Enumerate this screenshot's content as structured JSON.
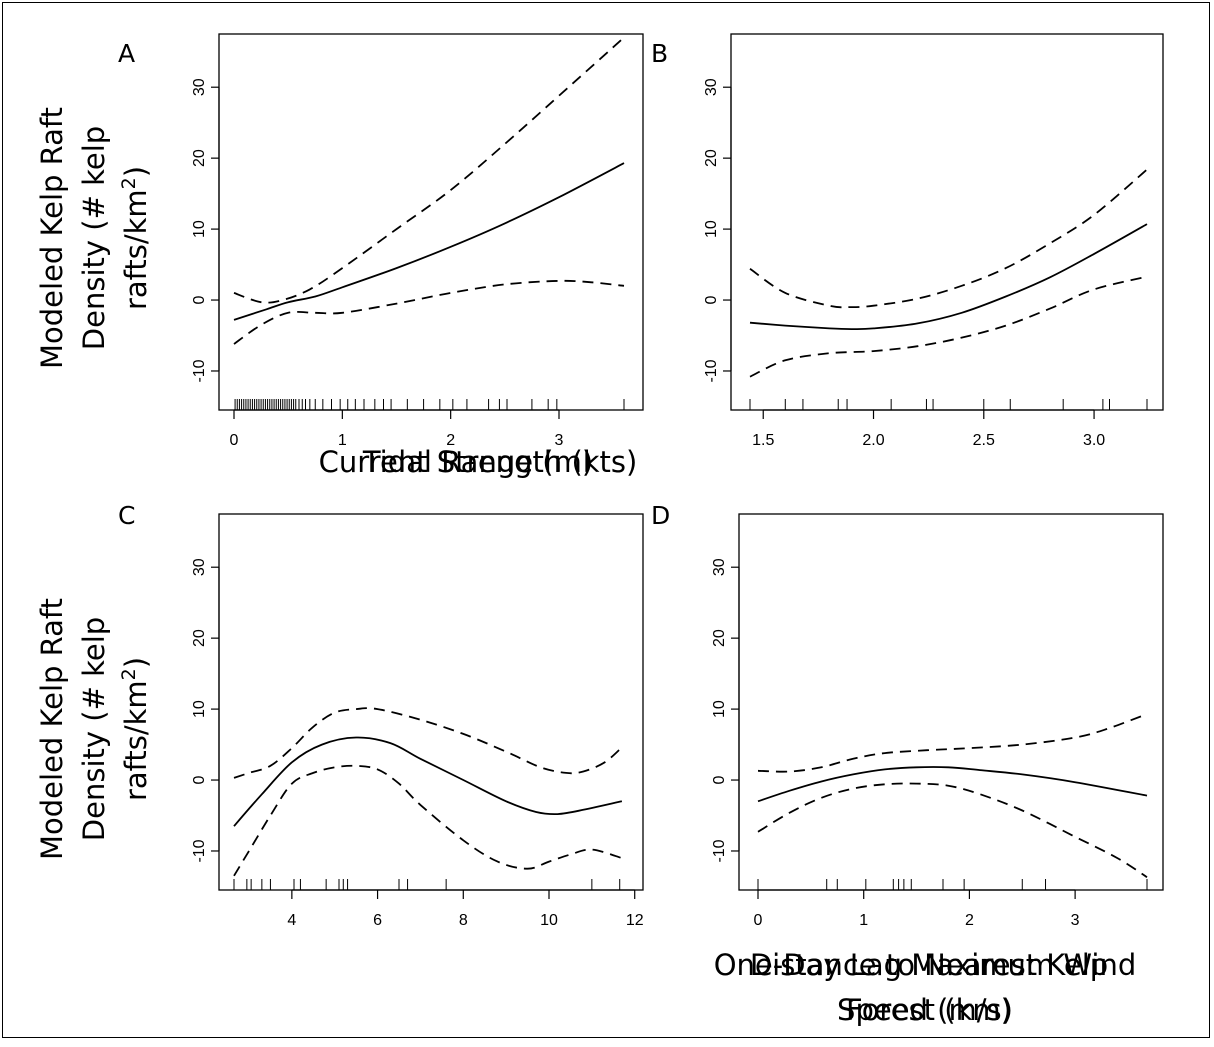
{
  "figure": {
    "y_label_line1": "Modeled Kelp Raft",
    "y_label_line2_prefix": "Density (# kelp",
    "y_label_line3_prefix": "rafts/km",
    "y_label_superscript": "2",
    "y_label_line3_suffix": ")"
  },
  "chart_data": [
    {
      "panel_letter": "A",
      "type": "line",
      "xlabel": [
        "Current Strength (kts)"
      ],
      "xlim": [
        0,
        3.6
      ],
      "ylim": [
        -15.5,
        37.5
      ],
      "xticks": [
        0,
        1,
        2,
        3
      ],
      "xtick_labels": [
        "0",
        "1",
        "2",
        "3"
      ],
      "yticks": [
        -10,
        0,
        10,
        20,
        30
      ],
      "ytick_labels": [
        "-10",
        "0",
        "10",
        "20",
        "30"
      ],
      "series": [
        {
          "role": "fit",
          "style": "solid",
          "x": [
            0,
            0.3,
            0.5,
            0.75,
            1,
            1.5,
            2,
            2.5,
            3,
            3.6
          ],
          "y": [
            -2.8,
            -1.3,
            -0.3,
            0.5,
            1.8,
            4.5,
            7.5,
            10.8,
            14.5,
            19.3
          ]
        },
        {
          "role": "upper",
          "style": "dashed",
          "x": [
            0,
            0.25,
            0.45,
            0.7,
            1,
            1.5,
            2,
            2.5,
            3,
            3.6
          ],
          "y": [
            1,
            -0.3,
            0,
            1.5,
            4.5,
            10,
            15.5,
            22,
            28.8,
            37
          ]
        },
        {
          "role": "lower",
          "style": "dashed",
          "x": [
            0,
            0.25,
            0.5,
            0.75,
            1,
            1.5,
            2,
            2.5,
            3,
            3.3,
            3.6
          ],
          "y": [
            -6.2,
            -3.5,
            -1.8,
            -1.8,
            -1.8,
            -0.5,
            1,
            2.2,
            2.7,
            2.5,
            2
          ]
        }
      ],
      "rug": [
        0.01,
        0.03,
        0.05,
        0.07,
        0.09,
        0.11,
        0.13,
        0.15,
        0.17,
        0.19,
        0.21,
        0.23,
        0.25,
        0.27,
        0.29,
        0.31,
        0.33,
        0.35,
        0.37,
        0.39,
        0.41,
        0.43,
        0.45,
        0.47,
        0.49,
        0.51,
        0.53,
        0.55,
        0.57,
        0.6,
        0.63,
        0.66,
        0.7,
        0.75,
        0.82,
        0.9,
        0.98,
        1.05,
        1.12,
        1.2,
        1.3,
        1.38,
        1.45,
        1.6,
        1.75,
        1.9,
        2.02,
        2.15,
        2.35,
        2.45,
        2.52,
        2.75,
        2.9,
        2.98,
        3.6
      ]
    },
    {
      "panel_letter": "B",
      "type": "line",
      "xlabel": [
        "Tidal Range (m)"
      ],
      "xlim": [
        1.44,
        3.24
      ],
      "ylim": [
        -15.5,
        37.5
      ],
      "xticks": [
        1.5,
        2.0,
        2.5,
        3.0
      ],
      "xtick_labels": [
        "1.5",
        "2.0",
        "2.5",
        "3.0"
      ],
      "yticks": [
        -10,
        0,
        10,
        20,
        30
      ],
      "ytick_labels": [
        "-10",
        "0",
        "10",
        "20",
        "30"
      ],
      "series": [
        {
          "role": "fit",
          "style": "solid",
          "x": [
            1.44,
            1.6,
            1.8,
            1.9,
            2.0,
            2.2,
            2.4,
            2.6,
            2.8,
            3.0,
            3.24
          ],
          "y": [
            -3.2,
            -3.6,
            -4,
            -4.1,
            -4,
            -3.3,
            -1.8,
            0.5,
            3.2,
            6.5,
            10.7
          ]
        },
        {
          "role": "upper",
          "style": "dashed",
          "x": [
            1.44,
            1.6,
            1.8,
            1.9,
            2.0,
            2.2,
            2.4,
            2.6,
            2.8,
            3.0,
            3.24
          ],
          "y": [
            4.4,
            1,
            -0.8,
            -1,
            -0.8,
            0.2,
            2,
            4.5,
            8,
            12,
            18.4
          ]
        },
        {
          "role": "lower",
          "style": "dashed",
          "x": [
            1.44,
            1.6,
            1.8,
            2.0,
            2.2,
            2.4,
            2.6,
            2.8,
            3.0,
            3.24
          ],
          "y": [
            -10.8,
            -8.5,
            -7.5,
            -7.2,
            -6.5,
            -5.3,
            -3.6,
            -1.2,
            1.5,
            3.3
          ]
        }
      ],
      "rug": [
        1.44,
        1.6,
        1.68,
        1.84,
        1.88,
        2.08,
        2.24,
        2.27,
        2.5,
        2.62,
        2.86,
        3.04,
        3.07,
        3.24
      ]
    },
    {
      "panel_letter": "C",
      "type": "line",
      "xlabel": [
        "One-Day Lag Maximum Wind",
        "Speed (m/s)"
      ],
      "xlim": [
        2.65,
        11.75
      ],
      "ylim": [
        -15.5,
        37.5
      ],
      "xticks": [
        4,
        6,
        8,
        10,
        12
      ],
      "xtick_labels": [
        "4",
        "6",
        "8",
        "10",
        "12"
      ],
      "yticks": [
        -10,
        0,
        10,
        20,
        30
      ],
      "ytick_labels": [
        "-10",
        "0",
        "10",
        "20",
        "30"
      ],
      "series": [
        {
          "role": "fit",
          "style": "solid",
          "x": [
            2.65,
            3.3,
            4,
            4.7,
            5.5,
            6.3,
            7,
            8,
            9,
            9.7,
            10.2,
            10.8,
            11.7
          ],
          "y": [
            -6.5,
            -2,
            2.5,
            5,
            6,
            5.2,
            3,
            0,
            -3,
            -4.5,
            -4.8,
            -4.2,
            -3
          ]
        },
        {
          "role": "upper",
          "style": "dashed",
          "x": [
            2.65,
            3,
            3.5,
            4,
            4.5,
            5,
            5.5,
            6,
            7,
            8,
            9,
            9.8,
            10.4,
            10.8,
            11.3,
            11.7
          ],
          "y": [
            0.3,
            1,
            2,
            4.5,
            7.5,
            9.5,
            10,
            10,
            8.5,
            6.5,
            4,
            1.8,
            1,
            1.2,
            2.5,
            4.6
          ]
        },
        {
          "role": "lower",
          "style": "dashed",
          "x": [
            2.65,
            3,
            3.5,
            4,
            4.5,
            5,
            5.5,
            6,
            6.5,
            7,
            8,
            8.8,
            9.5,
            10,
            10.5,
            11,
            11.7
          ],
          "y": [
            -13.5,
            -10,
            -5,
            -0.5,
            1,
            1.8,
            2,
            1.5,
            -0.5,
            -3.5,
            -8.5,
            -11.5,
            -12.5,
            -11.5,
            -10.5,
            -9.8,
            -11
          ]
        }
      ],
      "rug": [
        2.65,
        2.95,
        3.05,
        3.3,
        3.5,
        4.05,
        4.2,
        4.8,
        5.1,
        5.2,
        5.3,
        6.5,
        6.7,
        7.6,
        11.0,
        11.65
      ]
    },
    {
      "panel_letter": "D",
      "type": "line",
      "xlabel": [
        "Distance to Nearest Kelp",
        "Forest (km)"
      ],
      "xlim": [
        0,
        3.68
      ],
      "ylim": [
        -15.5,
        37.5
      ],
      "xticks": [
        0,
        1,
        2,
        3
      ],
      "xtick_labels": [
        "0",
        "1",
        "2",
        "3"
      ],
      "yticks": [
        -10,
        0,
        10,
        20,
        30
      ],
      "ytick_labels": [
        "-10",
        "0",
        "10",
        "20",
        "30"
      ],
      "series": [
        {
          "role": "fit",
          "style": "solid",
          "x": [
            0,
            0.3,
            0.6,
            0.9,
            1.2,
            1.5,
            1.8,
            2.1,
            2.5,
            3,
            3.68
          ],
          "y": [
            -3,
            -1.5,
            -0.2,
            0.8,
            1.5,
            1.8,
            1.8,
            1.4,
            0.8,
            -0.3,
            -2.2
          ]
        },
        {
          "role": "upper",
          "style": "dashed",
          "x": [
            0,
            0.3,
            0.6,
            0.9,
            1.2,
            1.6,
            2,
            2.5,
            3,
            3.3,
            3.68
          ],
          "y": [
            1.3,
            1.2,
            1.8,
            3,
            3.8,
            4.2,
            4.5,
            5,
            6,
            7.2,
            9.3
          ]
        },
        {
          "role": "lower",
          "style": "dashed",
          "x": [
            0,
            0.3,
            0.6,
            0.9,
            1.2,
            1.5,
            1.8,
            2.1,
            2.5,
            3,
            3.4,
            3.68
          ],
          "y": [
            -7.3,
            -4.6,
            -2.5,
            -1.2,
            -0.6,
            -0.5,
            -0.8,
            -2,
            -4.3,
            -8,
            -11,
            -13.7
          ]
        }
      ],
      "rug": [
        0,
        0.65,
        0.75,
        1.02,
        1.28,
        1.33,
        1.38,
        1.45,
        1.75,
        1.95,
        2.5,
        2.72,
        3.68
      ]
    }
  ]
}
